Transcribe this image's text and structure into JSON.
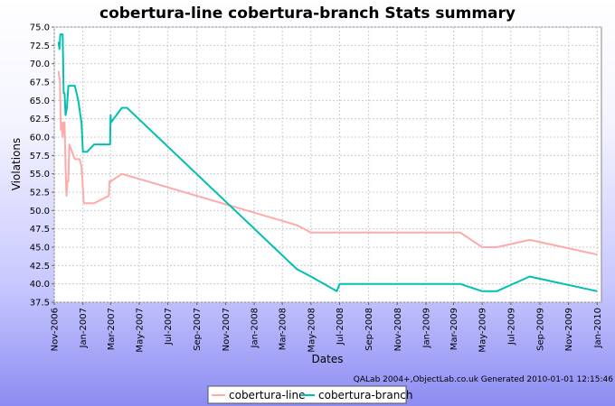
{
  "chart_data": {
    "type": "line",
    "title": "cobertura-line cobertura-branch  Stats summary",
    "xlabel": "Dates",
    "ylabel": "Violations",
    "ylim": [
      37.5,
      75.0
    ],
    "yticks": [
      "37.5",
      "40.0",
      "42.5",
      "45.0",
      "47.5",
      "50.0",
      "52.5",
      "55.0",
      "57.5",
      "60.0",
      "62.5",
      "65.0",
      "67.5",
      "70.0",
      "72.5",
      "75.0"
    ],
    "xlim": [
      "2006-11-01",
      "2010-01-10"
    ],
    "xticks": [
      {
        "date": "2006-11-01",
        "label": "Nov-2006"
      },
      {
        "date": "2007-01-01",
        "label": "Jan-2007"
      },
      {
        "date": "2007-03-01",
        "label": "Mar-2007"
      },
      {
        "date": "2007-05-01",
        "label": "May-2007"
      },
      {
        "date": "2007-07-01",
        "label": "Jul-2007"
      },
      {
        "date": "2007-09-01",
        "label": "Sep-2007"
      },
      {
        "date": "2007-11-01",
        "label": "Nov-2007"
      },
      {
        "date": "2008-01-01",
        "label": "Jan-2008"
      },
      {
        "date": "2008-03-01",
        "label": "Mar-2008"
      },
      {
        "date": "2008-05-01",
        "label": "May-2008"
      },
      {
        "date": "2008-07-01",
        "label": "Jul-2008"
      },
      {
        "date": "2008-09-01",
        "label": "Sep-2008"
      },
      {
        "date": "2008-11-01",
        "label": "Nov-2008"
      },
      {
        "date": "2009-01-01",
        "label": "Jan-2009"
      },
      {
        "date": "2009-03-01",
        "label": "Mar-2009"
      },
      {
        "date": "2009-05-01",
        "label": "May-2009"
      },
      {
        "date": "2009-07-01",
        "label": "Jul-2009"
      },
      {
        "date": "2009-09-01",
        "label": "Sep-2009"
      },
      {
        "date": "2009-11-01",
        "label": "Nov-2009"
      },
      {
        "date": "2010-01-01",
        "label": "Jan-2010"
      }
    ],
    "grid": true,
    "legend": "bottom",
    "footer": "QALab 2004+,ObjectLab.co.uk  Generated 2010-01-01 12:15:46",
    "series": [
      {
        "name": "cobertura-line",
        "color": "#ffaaaa",
        "points": [
          [
            "2006-11-10",
            69
          ],
          [
            "2006-11-12",
            68
          ],
          [
            "2006-11-13",
            68
          ],
          [
            "2006-11-15",
            61
          ],
          [
            "2006-11-17",
            62
          ],
          [
            "2006-11-19",
            60
          ],
          [
            "2006-11-21",
            62
          ],
          [
            "2006-11-23",
            62
          ],
          [
            "2006-11-25",
            56
          ],
          [
            "2006-11-27",
            52
          ],
          [
            "2006-11-29",
            54
          ],
          [
            "2006-12-01",
            54
          ],
          [
            "2006-12-03",
            59
          ],
          [
            "2006-12-15",
            57
          ],
          [
            "2006-12-25",
            57
          ],
          [
            "2006-12-29",
            56
          ],
          [
            "2007-01-03",
            51
          ],
          [
            "2007-01-25",
            51
          ],
          [
            "2007-02-25",
            52
          ],
          [
            "2007-02-27",
            54
          ],
          [
            "2007-03-02",
            54
          ],
          [
            "2007-03-25",
            55
          ],
          [
            "2008-04-01",
            48
          ],
          [
            "2008-05-01",
            47
          ],
          [
            "2009-03-01",
            47
          ],
          [
            "2009-03-15",
            47
          ],
          [
            "2009-05-01",
            45
          ],
          [
            "2009-06-01",
            45
          ],
          [
            "2009-08-10",
            46
          ],
          [
            "2010-01-01",
            44
          ]
        ]
      },
      {
        "name": "cobertura-branch",
        "color": "#00c0b0",
        "points": [
          [
            "2006-11-10",
            73
          ],
          [
            "2006-11-12",
            72
          ],
          [
            "2006-11-14",
            74
          ],
          [
            "2006-11-18",
            74
          ],
          [
            "2006-11-19",
            74
          ],
          [
            "2006-11-21",
            66
          ],
          [
            "2006-11-23",
            66
          ],
          [
            "2006-11-25",
            63
          ],
          [
            "2006-11-28",
            64
          ],
          [
            "2006-12-01",
            67
          ],
          [
            "2006-12-15",
            67
          ],
          [
            "2006-12-22",
            65
          ],
          [
            "2006-12-29",
            62
          ],
          [
            "2007-01-01",
            58
          ],
          [
            "2007-01-10",
            58
          ],
          [
            "2007-01-25",
            59
          ],
          [
            "2007-02-28",
            59
          ],
          [
            "2007-03-01",
            63
          ],
          [
            "2007-03-02",
            62
          ],
          [
            "2007-03-25",
            64
          ],
          [
            "2007-04-05",
            64
          ],
          [
            "2008-04-01",
            42
          ],
          [
            "2008-05-01",
            41
          ],
          [
            "2008-06-25",
            39
          ],
          [
            "2008-07-01",
            40
          ],
          [
            "2009-03-01",
            40
          ],
          [
            "2009-03-15",
            40
          ],
          [
            "2009-05-01",
            39
          ],
          [
            "2009-06-01",
            39
          ],
          [
            "2009-08-10",
            41
          ],
          [
            "2010-01-01",
            39
          ]
        ]
      }
    ]
  }
}
